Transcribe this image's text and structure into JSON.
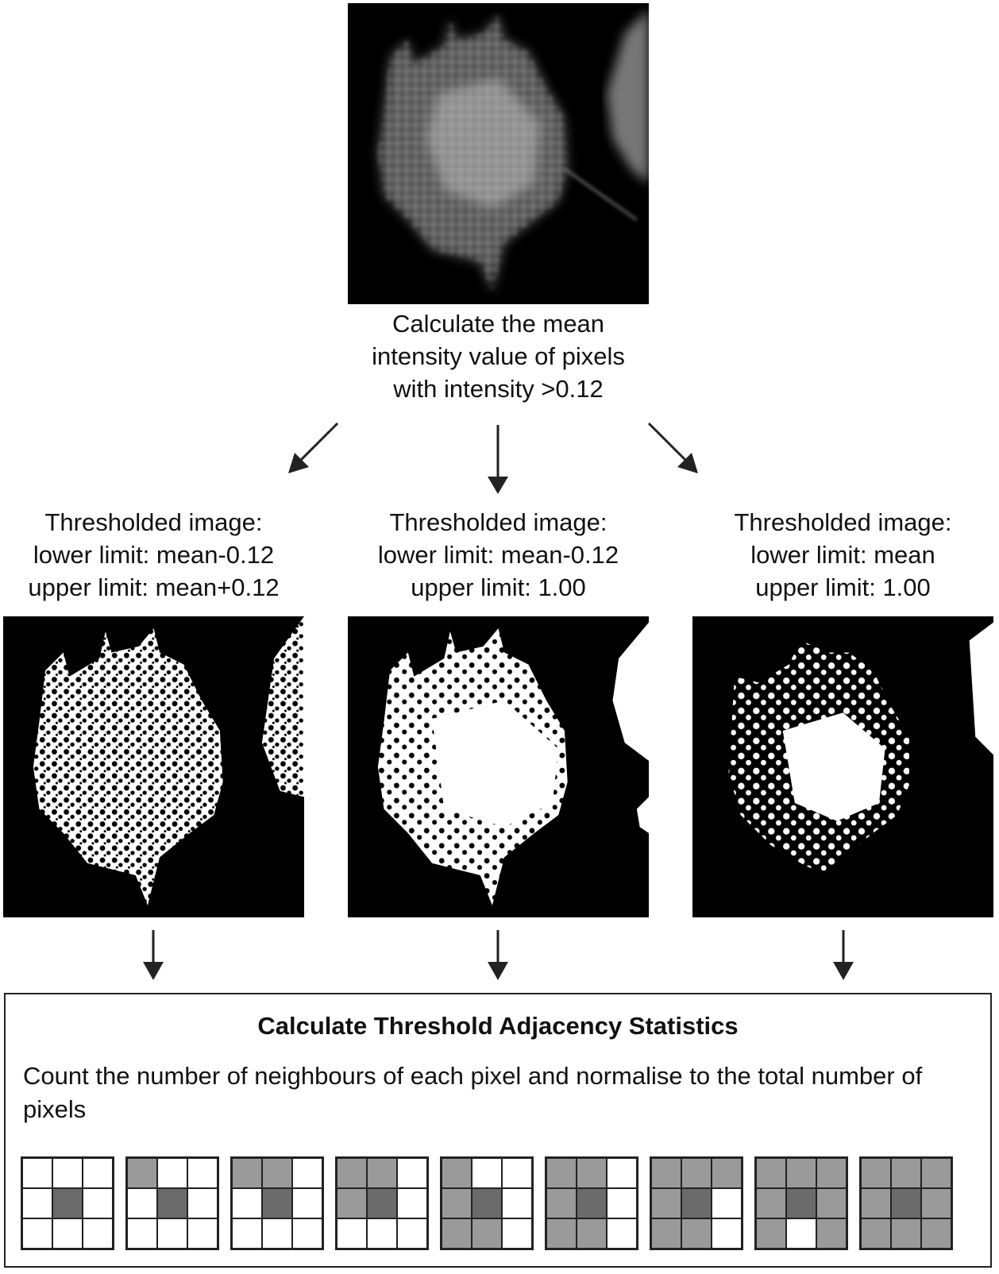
{
  "top_step": {
    "lines": [
      "Calculate the mean",
      "intensity value of pixels",
      "with intensity >0.12"
    ]
  },
  "thresholds": [
    {
      "lines": [
        "Thresholded image:",
        "lower limit: mean-0.12",
        "upper limit: mean+0.12"
      ]
    },
    {
      "lines": [
        "Thresholded image:",
        "lower limit: mean-0.12",
        "upper limit: 1.00"
      ]
    },
    {
      "lines": [
        "Thresholded image:",
        "lower limit: mean",
        "upper limit: 1.00"
      ]
    }
  ],
  "tas": {
    "title": "Calculate Threshold Adjacency Statistics",
    "description": "Count the number of neighbours of each pixel and normalise to the total number of pixels",
    "neighbour_counts": [
      0,
      1,
      2,
      3,
      4,
      5,
      6,
      7,
      8
    ]
  },
  "colors": {
    "background": "#ffffff",
    "image_background": "#000000",
    "neighbour_cell": "#9a9a9a",
    "center_cell": "#6b6b6b",
    "empty_cell": "#ffffff"
  }
}
